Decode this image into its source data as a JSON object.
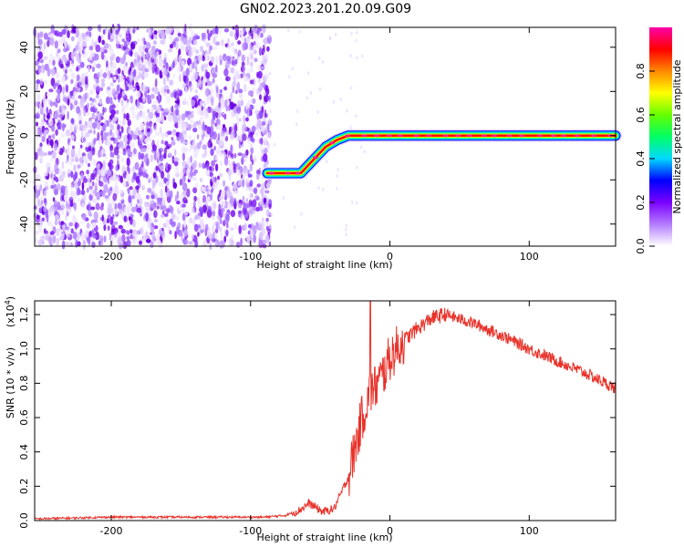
{
  "title": "GN02.2023.201.20.09.G09",
  "chart_data": [
    {
      "type": "heatmap",
      "xlabel": "Height of straight line (km)",
      "ylabel": "Frequency (Hz)",
      "xlim": [
        -255,
        162
      ],
      "ylim": [
        -50,
        49
      ],
      "xticks": [
        -200,
        -100,
        0,
        100
      ],
      "yticks": [
        -40,
        -20,
        0,
        20,
        40
      ],
      "colorbar": {
        "label": "Normalized spectral amplitude",
        "range": [
          0,
          1
        ],
        "ticks": [
          "0.0",
          "0.2",
          "0.4",
          "0.6",
          "0.8"
        ],
        "colors": [
          "#ffffff",
          "#b47cff",
          "#7b00ff",
          "#0000ff",
          "#00d9ff",
          "#00ff66",
          "#66ff00",
          "#ffff00",
          "#ff8800",
          "#ff0000",
          "#ff00aa"
        ]
      },
      "noise_region_x": [
        -255,
        -86
      ],
      "ridge": {
        "x": [
          -88,
          -64,
          -58,
          -52,
          -46,
          -38,
          -30,
          -20,
          -10,
          0,
          50,
          100,
          162
        ],
        "y": [
          -17,
          -17,
          -13,
          -9,
          -5,
          -2,
          0,
          0,
          0,
          0,
          0,
          0,
          0
        ],
        "amplitude": 1.0
      }
    },
    {
      "type": "line",
      "xlabel": "Height of straight line (km)",
      "ylabel": "SNR (10 * v/v)",
      "yscale_label": "(x10",
      "yscale_exp": "4",
      "xlim": [
        -255,
        162
      ],
      "ylim": [
        0,
        1.28
      ],
      "xticks": [
        -200,
        -100,
        0,
        100
      ],
      "yticks": [
        "0.0",
        "0.2",
        "0.4",
        "0.6",
        "0.8",
        "1.0",
        "1.2"
      ],
      "color": "#e8322a",
      "series": [
        {
          "x": [
            -255,
            -200,
            -120,
            -90,
            -75,
            -65,
            -58,
            -52,
            -48,
            -40,
            -30,
            -20,
            -14,
            -10,
            -5,
            0,
            5,
            10,
            20,
            30,
            40,
            60,
            80,
            100,
            120,
            140,
            162
          ],
          "y": [
            0.01,
            0.02,
            0.02,
            0.02,
            0.03,
            0.06,
            0.1,
            0.07,
            0.05,
            0.07,
            0.25,
            0.6,
            0.75,
            0.78,
            0.85,
            0.95,
            1.0,
            1.05,
            1.12,
            1.18,
            1.2,
            1.15,
            1.08,
            1.0,
            0.93,
            0.86,
            0.77
          ]
        }
      ],
      "spike": {
        "x": -14,
        "y": 1.28
      }
    }
  ]
}
